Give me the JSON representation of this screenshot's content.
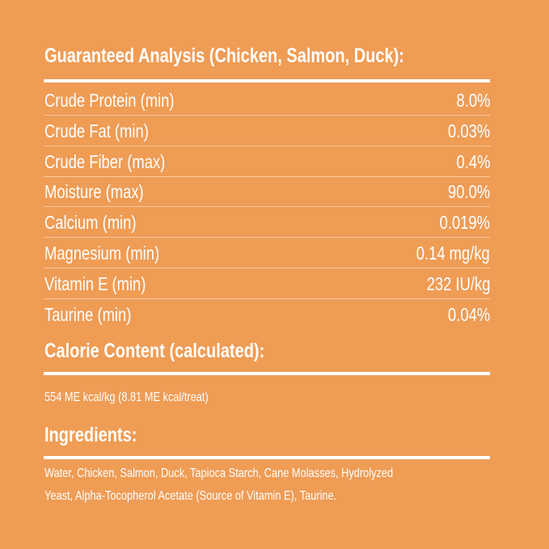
{
  "analysis": {
    "title": "Guaranteed Analysis (Chicken, Salmon, Duck):",
    "rows": [
      {
        "label": "Crude Protein (min)",
        "value": "8.0%"
      },
      {
        "label": "Crude Fat (min)",
        "value": "0.03%"
      },
      {
        "label": "Crude Fiber (max)",
        "value": "0.4%"
      },
      {
        "label": "Moisture (max)",
        "value": "90.0%"
      },
      {
        "label": "Calcium (min)",
        "value": "0.019%"
      },
      {
        "label": "Magnesium (min)",
        "value": "0.14 mg/kg"
      },
      {
        "label": "Vitamin E  (min)",
        "value": "232 IU/kg"
      },
      {
        "label": "Taurine (min)",
        "value": "0.04%"
      }
    ]
  },
  "calorie": {
    "title": "Calorie Content (calculated):",
    "text": "554 ME kcal/kg (8.81 ME kcal/treat)"
  },
  "ingredients": {
    "title": "Ingredients:",
    "line1": "Water, Chicken, Salmon, Duck, Tapioca Starch, Cane Molasses, Hydrolyzed",
    "line2": "Yeast, Alpha-Tocopherol Acetate (Source of Vitamin E), Taurine."
  },
  "colors": {
    "background": "#EF9C55",
    "text": "#FFFFFF"
  }
}
